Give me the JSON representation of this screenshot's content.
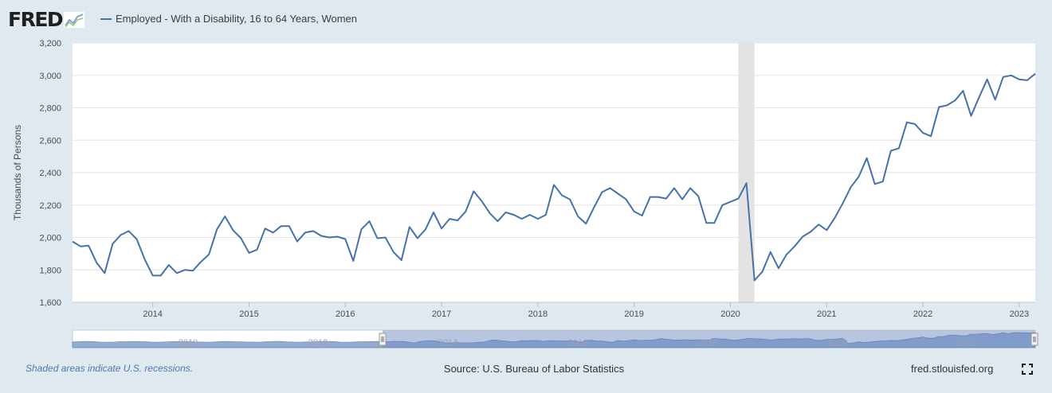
{
  "header": {
    "logo_text": "FRED",
    "series_label": "Employed - With a Disability, 16 to 64 Years, Women"
  },
  "footer": {
    "recession_note": "Shaded areas indicate U.S. recessions.",
    "source": "Source: U.S. Bureau of Labor Statistics",
    "site": "fred.stlouisfed.org"
  },
  "colors": {
    "line": "#4572a7",
    "recession": "#e3e3e3",
    "background": "#e1e9f0"
  },
  "navigator": {
    "labels": [
      "2010",
      "2012",
      "2014",
      "2016",
      "2018",
      "2020",
      "2022"
    ]
  },
  "chart_data": {
    "type": "line",
    "title": "Employed - With a Disability, 16 to 64 Years, Women",
    "ylabel": "Thousands of Persons",
    "xlabel": "",
    "ylim": [
      1600,
      3200
    ],
    "yticks": [
      "1,600",
      "1,800",
      "2,000",
      "2,200",
      "2,400",
      "2,600",
      "2,800",
      "3,000",
      "3,200"
    ],
    "xticks": [
      "2014",
      "2015",
      "2016",
      "2017",
      "2018",
      "2019",
      "2020",
      "2021",
      "2022",
      "2023"
    ],
    "start": "2013-03",
    "recession": [
      "2020-02",
      "2020-04"
    ],
    "series": [
      {
        "name": "Employed - With a Disability, 16 to 64 Years, Women",
        "values": [
          1975,
          1945,
          1950,
          1845,
          1780,
          1960,
          2015,
          2040,
          1990,
          1865,
          1765,
          1765,
          1830,
          1780,
          1800,
          1795,
          1850,
          1895,
          2050,
          2130,
          2045,
          1995,
          1905,
          1925,
          2055,
          2030,
          2070,
          2070,
          1975,
          2030,
          2040,
          2010,
          2000,
          2005,
          1990,
          1855,
          2050,
          2100,
          1995,
          2000,
          1910,
          1860,
          2065,
          1995,
          2050,
          2155,
          2055,
          2115,
          2105,
          2160,
          2285,
          2225,
          2150,
          2100,
          2155,
          2140,
          2115,
          2140,
          2115,
          2140,
          2325,
          2260,
          2235,
          2130,
          2085,
          2185,
          2280,
          2305,
          2270,
          2235,
          2160,
          2135,
          2250,
          2250,
          2240,
          2305,
          2235,
          2305,
          2255,
          2090,
          2090,
          2200,
          2220,
          2240,
          2335,
          1735,
          1790,
          1910,
          1810,
          1895,
          1945,
          2005,
          2035,
          2080,
          2045,
          2120,
          2210,
          2310,
          2375,
          2490,
          2330,
          2345,
          2535,
          2550,
          2710,
          2700,
          2645,
          2625,
          2805,
          2815,
          2845,
          2905,
          2750,
          2865,
          2975,
          2850,
          2990,
          3000,
          2975,
          2970,
          3010
        ]
      }
    ]
  }
}
